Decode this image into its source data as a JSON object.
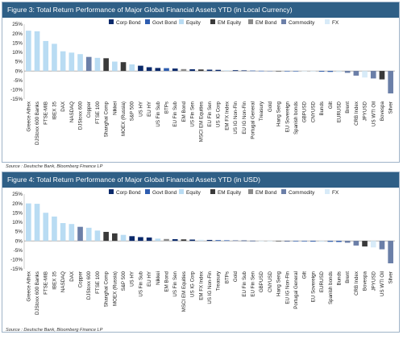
{
  "figure3": {
    "title": "Figure 3: Total Return Performance of Major Global Financial Assets YTD (in Local Currency)"
  },
  "figure4": {
    "title": "Figure 4: Total Return Performance of Major Global Financial Assets YTD (in USD)"
  },
  "source": "Source : Deutsche Bank, Bloomberg Finance LP",
  "colors": {
    "Corp Bond": "#0b2a6b",
    "Govt Bond": "#2e5db0",
    "Equity": "#b9dcf3",
    "EM Equity": "#3a3a3a",
    "EM Bond": "#8a8a8a",
    "Commodity": "#6b7fa8",
    "FX": "#d8ebf8"
  },
  "chart_data": [
    {
      "type": "bar",
      "title": "Figure 3: Total Return Performance of Major Global Financial Assets YTD (in Local Currency)",
      "ylim": [
        -15,
        25
      ],
      "yticks": [
        25,
        20,
        15,
        10,
        5,
        0,
        -5,
        -10,
        -15
      ],
      "legend": [
        "Corp Bond",
        "Govt Bond",
        "Equity",
        "EM Equity",
        "EM Bond",
        "Commodity",
        "FX"
      ],
      "legend_position": "top",
      "categories": [
        "Greece Athex",
        "DJStoxx 600 Banks",
        "FTSE-MIB",
        "IBEX 35",
        "DAX",
        "NASDAQ",
        "DJStoxx 600",
        "Copper",
        "FTSE 100",
        "Shanghai Comp",
        "Nikkei",
        "MOEX (Russia)",
        "S&P 500",
        "US HY",
        "EU HY",
        "US Fin Sub",
        "BTPs",
        "EU Fin Sub",
        "EM Bond",
        "US Fin Sen",
        "MSCI EM Equities",
        "EU Fin Sen",
        "US IG Corp",
        "EM FX Index",
        "US IG Non-Fin",
        "EU IG Non-Fin",
        "Portugal General",
        "Treasury",
        "Gold",
        "Hang Seng",
        "EU Sovereign",
        "Spanish bonds",
        "GBPUSD",
        "CNYUSD",
        "Bunds",
        "Gilt",
        "EURUSD",
        "Brent",
        "CRB Index",
        "JPYUSD",
        "US WTI Oil",
        "Bovespa",
        "Silver"
      ],
      "classes": [
        "Equity",
        "Equity",
        "Equity",
        "Equity",
        "Equity",
        "Equity",
        "Equity",
        "Commodity",
        "Equity",
        "EM Equity",
        "Equity",
        "EM Equity",
        "Equity",
        "Corp Bond",
        "Corp Bond",
        "Corp Bond",
        "Govt Bond",
        "Corp Bond",
        "EM Bond",
        "Corp Bond",
        "EM Equity",
        "Corp Bond",
        "Corp Bond",
        "FX",
        "Corp Bond",
        "Corp Bond",
        "Govt Bond",
        "Govt Bond",
        "Commodity",
        "EM Equity",
        "Govt Bond",
        "Govt Bond",
        "FX",
        "FX",
        "Govt Bond",
        "Govt Bond",
        "FX",
        "Commodity",
        "Commodity",
        "FX",
        "Commodity",
        "EM Equity",
        "Commodity"
      ],
      "values": [
        21.5,
        21.2,
        16.0,
        14.5,
        10.5,
        9.8,
        9.0,
        7.5,
        7.0,
        6.8,
        5.0,
        4.7,
        3.5,
        2.8,
        2.0,
        1.6,
        1.5,
        1.3,
        1.0,
        0.9,
        0.8,
        0.7,
        0.6,
        0.5,
        0.4,
        0.3,
        0.2,
        0.1,
        0.05,
        -0.1,
        -0.1,
        -0.2,
        -0.2,
        -0.3,
        -0.4,
        -0.5,
        -0.6,
        -1.0,
        -2.5,
        -3.5,
        -4.0,
        -4.5,
        -12.0
      ]
    },
    {
      "type": "bar",
      "title": "Figure 4: Total Return Performance of Major Global Financial Assets YTD (in USD)",
      "ylim": [
        -15,
        25
      ],
      "yticks": [
        25,
        20,
        15,
        10,
        5,
        0,
        -5,
        -10,
        -15
      ],
      "legend": [
        "Corp Bond",
        "Govt Bond",
        "Equity",
        "EM Equity",
        "EM Bond",
        "Commodity",
        "FX"
      ],
      "legend_position": "top",
      "categories": [
        "Greece Athex",
        "DJStoxx 600 Banks",
        "FTSE-MIB",
        "IBEX 35",
        "NASDAQ",
        "DAX",
        "Copper",
        "DJStoxx 600",
        "FTSE 100",
        "Shanghai Comp",
        "MOEX (Russia)",
        "S&P 500",
        "US HY",
        "US Fin Sub",
        "EU HY",
        "Nikkei",
        "EM Bond",
        "US Fin Sen",
        "MSCI EM Equities",
        "US IG Corp",
        "EM FX Index",
        "US IG Non-Fin",
        "Treasury",
        "BTPs",
        "Gold",
        "EU Fin Sub",
        "EU Fin Sen",
        "GBPUSD",
        "CNYUSD",
        "Hang Seng",
        "EU IG Non-Fin",
        "Portugal General",
        "Gilt",
        "EU Sovereign",
        "EURUSD",
        "Spanish bonds",
        "Bunds",
        "Brent",
        "CRB Index",
        "Bovespa",
        "JPYUSD",
        "US WTI Oil",
        "Silver"
      ],
      "classes": [
        "Equity",
        "Equity",
        "Equity",
        "Equity",
        "Equity",
        "Equity",
        "Commodity",
        "Equity",
        "Equity",
        "EM Equity",
        "EM Equity",
        "Equity",
        "Corp Bond",
        "Corp Bond",
        "Corp Bond",
        "Equity",
        "EM Bond",
        "Corp Bond",
        "EM Equity",
        "Corp Bond",
        "FX",
        "Corp Bond",
        "Govt Bond",
        "Govt Bond",
        "Commodity",
        "Corp Bond",
        "Corp Bond",
        "FX",
        "FX",
        "EM Equity",
        "Corp Bond",
        "Govt Bond",
        "Govt Bond",
        "Govt Bond",
        "FX",
        "Govt Bond",
        "Govt Bond",
        "Commodity",
        "Commodity",
        "EM Equity",
        "FX",
        "Commodity",
        "Commodity"
      ],
      "values": [
        20.0,
        19.8,
        15.0,
        13.0,
        9.5,
        9.0,
        7.5,
        7.0,
        5.5,
        4.8,
        4.0,
        3.2,
        2.5,
        2.0,
        1.8,
        1.2,
        1.0,
        0.9,
        0.8,
        0.7,
        0.6,
        0.5,
        0.4,
        0.3,
        0.3,
        0.2,
        0.1,
        -0.1,
        -0.1,
        -0.2,
        -0.2,
        -0.3,
        -0.3,
        -0.4,
        -0.5,
        -0.5,
        -0.6,
        -1.0,
        -2.5,
        -3.0,
        -3.5,
        -4.5,
        -12.0
      ]
    }
  ]
}
